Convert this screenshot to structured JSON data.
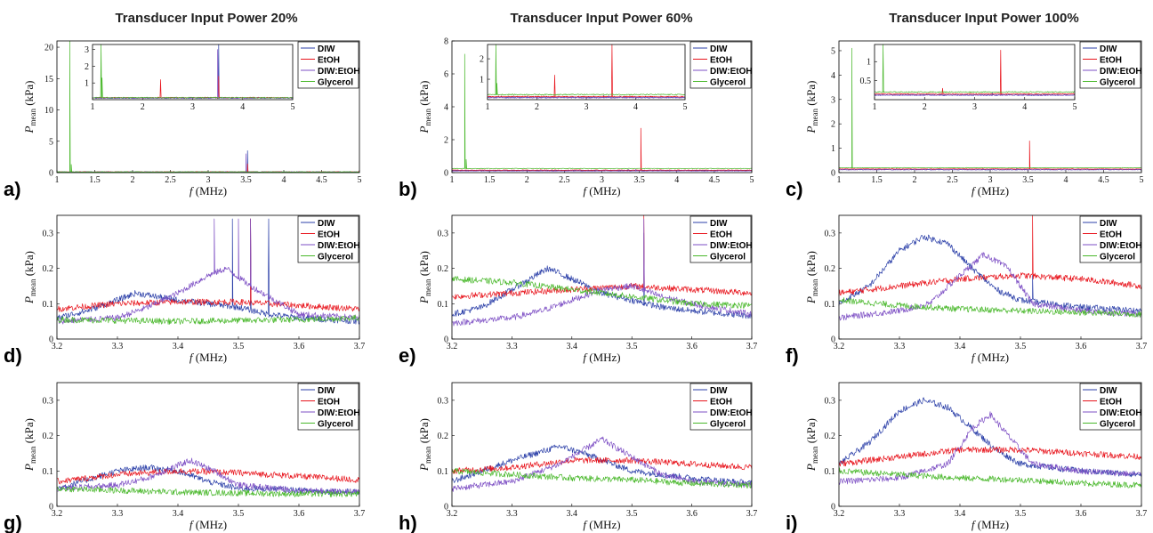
{
  "column_titles": [
    "Transducer Input Power 20%",
    "Transducer Input Power 60%",
    "Transducer Input Power 100%"
  ],
  "colors": {
    "DIW": "#2b3fa8",
    "EtOH": "#e8141c",
    "DIW:EtOH": "#7d4fc4",
    "Glycerol": "#49b82b"
  },
  "axis_text": {
    "x_var": "f",
    "x_unit": "(MHz)",
    "y_var": "P",
    "y_sub": "mean",
    "y_unit": "(kPa)"
  },
  "chart_data": [
    {
      "panel": "a)",
      "type": "line",
      "xlim": [
        1,
        5
      ],
      "ylim": [
        0,
        21
      ],
      "legend": "top-right",
      "x_ticks": [
        1,
        1.5,
        2,
        2.5,
        3,
        3.5,
        4,
        4.5,
        5
      ],
      "y_ticks": [
        0,
        5,
        10,
        15,
        20
      ],
      "series": [
        {
          "name": "DIW",
          "base": 0.1,
          "peaks": [
            [
              3.52,
              3.5
            ]
          ]
        },
        {
          "name": "EtOH",
          "base": 0.12,
          "peaks": [
            [
              2.36,
              1.2
            ],
            [
              3.52,
              1.4
            ]
          ]
        },
        {
          "name": "DIW:EtOH",
          "base": 0.1,
          "peaks": [
            [
              3.5,
              3.0
            ]
          ]
        },
        {
          "name": "Glycerol",
          "base": 0.12,
          "peaks": [
            [
              1.17,
              21
            ],
            [
              1.19,
              1.3
            ]
          ]
        }
      ],
      "inset": {
        "xlim": [
          1,
          5
        ],
        "ylim": [
          0,
          3.3
        ],
        "x_ticks": [
          1,
          2,
          3,
          4,
          5
        ],
        "y_ticks": [
          1,
          2,
          3
        ]
      }
    },
    {
      "panel": "b)",
      "type": "line",
      "xlim": [
        1,
        5
      ],
      "ylim": [
        0,
        8
      ],
      "legend": "top-right",
      "x_ticks": [
        1,
        1.5,
        2,
        2.5,
        3,
        3.5,
        4,
        4.5,
        5
      ],
      "y_ticks": [
        0,
        2,
        4,
        6,
        8
      ],
      "series": [
        {
          "name": "DIW",
          "base": 0.12,
          "peaks": [
            [
              3.35,
              0.2
            ]
          ]
        },
        {
          "name": "EtOH",
          "base": 0.15,
          "peaks": [
            [
              2.36,
              1.2
            ],
            [
              3.52,
              2.7
            ]
          ]
        },
        {
          "name": "DIW:EtOH",
          "base": 0.1,
          "peaks": [
            [
              3.45,
              0.2
            ]
          ]
        },
        {
          "name": "Glycerol",
          "base": 0.25,
          "peaks": [
            [
              1.17,
              7.2
            ],
            [
              1.19,
              0.8
            ]
          ]
        }
      ],
      "inset": {
        "xlim": [
          1,
          5
        ],
        "ylim": [
          0,
          2.7
        ],
        "x_ticks": [
          1,
          2,
          3,
          4,
          5
        ],
        "y_ticks": [
          1,
          2
        ]
      }
    },
    {
      "panel": "c)",
      "type": "line",
      "xlim": [
        1,
        5
      ],
      "ylim": [
        0,
        5.4
      ],
      "legend": "top-right",
      "x_ticks": [
        1,
        1.5,
        2,
        2.5,
        3,
        3.5,
        4,
        4.5,
        5
      ],
      "y_ticks": [
        0,
        1,
        2,
        3,
        4,
        5
      ],
      "series": [
        {
          "name": "DIW",
          "base": 0.12,
          "peaks": [
            [
              3.35,
              0.18
            ]
          ]
        },
        {
          "name": "EtOH",
          "base": 0.15,
          "peaks": [
            [
              2.36,
              0.3
            ],
            [
              3.52,
              1.3
            ]
          ]
        },
        {
          "name": "DIW:EtOH",
          "base": 0.12,
          "peaks": [
            [
              3.45,
              0.1
            ]
          ]
        },
        {
          "name": "Glycerol",
          "base": 0.2,
          "peaks": [
            [
              1.17,
              5.1
            ]
          ]
        }
      ],
      "inset": {
        "xlim": [
          1,
          5
        ],
        "ylim": [
          0,
          1.45
        ],
        "x_ticks": [
          1,
          2,
          3,
          4,
          5
        ],
        "y_ticks": [
          0.5,
          1
        ]
      }
    },
    {
      "panel": "d)",
      "type": "line",
      "xlim": [
        3.2,
        3.7
      ],
      "ylim": [
        0,
        0.35
      ],
      "legend": "top-right",
      "x_ticks": [
        3.2,
        3.3,
        3.4,
        3.5,
        3.6,
        3.7
      ],
      "y_ticks": [
        0,
        0.1,
        0.2,
        0.3
      ],
      "series": [
        {
          "name": "DIW",
          "x": [
            3.2,
            3.25,
            3.3,
            3.33,
            3.4,
            3.45,
            3.5,
            3.55,
            3.6,
            3.65,
            3.7
          ],
          "y": [
            0.06,
            0.08,
            0.11,
            0.13,
            0.11,
            0.1,
            0.09,
            0.07,
            0.06,
            0.055,
            0.05
          ],
          "peaks": [
            [
              3.49,
              0.34
            ],
            [
              3.52,
              0.34
            ],
            [
              3.55,
              0.34
            ]
          ]
        },
        {
          "name": "EtOH",
          "x": [
            3.2,
            3.3,
            3.4,
            3.5,
            3.6,
            3.7
          ],
          "y": [
            0.085,
            0.1,
            0.105,
            0.105,
            0.095,
            0.085
          ],
          "peaks": [
            [
              3.52,
              0.34
            ]
          ]
        },
        {
          "name": "DIW:EtOH",
          "x": [
            3.2,
            3.3,
            3.35,
            3.4,
            3.45,
            3.48,
            3.52,
            3.6,
            3.7
          ],
          "y": [
            0.05,
            0.06,
            0.09,
            0.13,
            0.18,
            0.2,
            0.15,
            0.07,
            0.06
          ],
          "peaks": [
            [
              3.46,
              0.34
            ],
            [
              3.5,
              0.34
            ],
            [
              3.52,
              0.34
            ]
          ]
        },
        {
          "name": "Glycerol",
          "x": [
            3.2,
            3.4,
            3.6,
            3.7
          ],
          "y": [
            0.055,
            0.05,
            0.055,
            0.06
          ]
        }
      ]
    },
    {
      "panel": "e)",
      "type": "line",
      "xlim": [
        3.2,
        3.7
      ],
      "ylim": [
        0,
        0.35
      ],
      "legend": "top-right",
      "x_ticks": [
        3.2,
        3.3,
        3.4,
        3.5,
        3.6,
        3.7
      ],
      "y_ticks": [
        0,
        0.1,
        0.2,
        0.3
      ],
      "series": [
        {
          "name": "DIW",
          "x": [
            3.2,
            3.25,
            3.3,
            3.36,
            3.4,
            3.45,
            3.5,
            3.55,
            3.6,
            3.7
          ],
          "y": [
            0.07,
            0.09,
            0.14,
            0.2,
            0.17,
            0.13,
            0.11,
            0.09,
            0.08,
            0.065
          ],
          "peaks": [
            [
              3.52,
              0.3
            ]
          ]
        },
        {
          "name": "EtOH",
          "x": [
            3.2,
            3.3,
            3.4,
            3.5,
            3.6,
            3.7
          ],
          "y": [
            0.12,
            0.13,
            0.14,
            0.15,
            0.14,
            0.13
          ],
          "peaks": [
            [
              3.52,
              0.35
            ]
          ]
        },
        {
          "name": "DIW:EtOH",
          "x": [
            3.2,
            3.3,
            3.35,
            3.4,
            3.45,
            3.5,
            3.55,
            3.6,
            3.7
          ],
          "y": [
            0.045,
            0.06,
            0.08,
            0.11,
            0.14,
            0.15,
            0.12,
            0.1,
            0.07
          ],
          "peaks": [
            [
              3.52,
              0.34
            ]
          ]
        },
        {
          "name": "Glycerol",
          "x": [
            3.2,
            3.3,
            3.4,
            3.5,
            3.6,
            3.7
          ],
          "y": [
            0.17,
            0.16,
            0.14,
            0.12,
            0.1,
            0.095
          ]
        }
      ]
    },
    {
      "panel": "f)",
      "type": "line",
      "xlim": [
        3.2,
        3.7
      ],
      "ylim": [
        0,
        0.35
      ],
      "legend": "top-right",
      "x_ticks": [
        3.2,
        3.3,
        3.4,
        3.5,
        3.6,
        3.7
      ],
      "y_ticks": [
        0,
        0.1,
        0.2,
        0.3
      ],
      "series": [
        {
          "name": "DIW",
          "x": [
            3.2,
            3.25,
            3.3,
            3.34,
            3.38,
            3.42,
            3.46,
            3.5,
            3.55,
            3.6,
            3.7
          ],
          "y": [
            0.1,
            0.15,
            0.25,
            0.29,
            0.27,
            0.2,
            0.14,
            0.11,
            0.1,
            0.09,
            0.08
          ],
          "peaks": [
            [
              3.52,
              0.18
            ]
          ]
        },
        {
          "name": "EtOH",
          "x": [
            3.2,
            3.3,
            3.4,
            3.5,
            3.6,
            3.7
          ],
          "y": [
            0.13,
            0.15,
            0.17,
            0.18,
            0.17,
            0.15
          ],
          "peaks": [
            [
              3.52,
              0.35
            ]
          ]
        },
        {
          "name": "DIW:EtOH",
          "x": [
            3.2,
            3.3,
            3.35,
            3.4,
            3.44,
            3.48,
            3.52,
            3.6,
            3.7
          ],
          "y": [
            0.06,
            0.08,
            0.1,
            0.18,
            0.24,
            0.2,
            0.1,
            0.08,
            0.07
          ]
        },
        {
          "name": "Glycerol",
          "x": [
            3.2,
            3.3,
            3.4,
            3.5,
            3.6,
            3.7
          ],
          "y": [
            0.11,
            0.095,
            0.085,
            0.08,
            0.075,
            0.07
          ]
        }
      ]
    },
    {
      "panel": "g)",
      "type": "line",
      "xlim": [
        3.2,
        3.7
      ],
      "ylim": [
        0,
        0.35
      ],
      "legend": "top-right",
      "x_ticks": [
        3.2,
        3.3,
        3.4,
        3.5,
        3.6,
        3.7
      ],
      "y_ticks": [
        0,
        0.1,
        0.2,
        0.3
      ],
      "series": [
        {
          "name": "DIW",
          "x": [
            3.2,
            3.3,
            3.35,
            3.4,
            3.45,
            3.5,
            3.55,
            3.6,
            3.7
          ],
          "y": [
            0.05,
            0.1,
            0.11,
            0.1,
            0.07,
            0.05,
            0.05,
            0.045,
            0.04
          ]
        },
        {
          "name": "EtOH",
          "x": [
            3.2,
            3.3,
            3.4,
            3.5,
            3.6,
            3.7
          ],
          "y": [
            0.07,
            0.09,
            0.1,
            0.095,
            0.085,
            0.075
          ]
        },
        {
          "name": "DIW:EtOH",
          "x": [
            3.2,
            3.3,
            3.35,
            3.42,
            3.46,
            3.5,
            3.6,
            3.7
          ],
          "y": [
            0.05,
            0.06,
            0.08,
            0.13,
            0.1,
            0.06,
            0.045,
            0.04
          ]
        },
        {
          "name": "Glycerol",
          "x": [
            3.2,
            3.4,
            3.6,
            3.7
          ],
          "y": [
            0.05,
            0.04,
            0.035,
            0.035
          ]
        }
      ]
    },
    {
      "panel": "h)",
      "type": "line",
      "xlim": [
        3.2,
        3.7
      ],
      "ylim": [
        0,
        0.35
      ],
      "legend": "top-right",
      "x_ticks": [
        3.2,
        3.3,
        3.4,
        3.5,
        3.6,
        3.7
      ],
      "y_ticks": [
        0,
        0.1,
        0.2,
        0.3
      ],
      "series": [
        {
          "name": "DIW",
          "x": [
            3.2,
            3.3,
            3.38,
            3.42,
            3.5,
            3.6,
            3.7
          ],
          "y": [
            0.07,
            0.13,
            0.17,
            0.15,
            0.1,
            0.08,
            0.065
          ]
        },
        {
          "name": "EtOH",
          "x": [
            3.2,
            3.3,
            3.4,
            3.5,
            3.6,
            3.7
          ],
          "y": [
            0.1,
            0.11,
            0.13,
            0.13,
            0.12,
            0.11
          ]
        },
        {
          "name": "DIW:EtOH",
          "x": [
            3.2,
            3.3,
            3.38,
            3.45,
            3.48,
            3.55,
            3.6,
            3.7
          ],
          "y": [
            0.05,
            0.07,
            0.12,
            0.19,
            0.16,
            0.09,
            0.07,
            0.06
          ]
        },
        {
          "name": "Glycerol",
          "x": [
            3.2,
            3.3,
            3.4,
            3.5,
            3.6,
            3.7
          ],
          "y": [
            0.1,
            0.09,
            0.08,
            0.075,
            0.065,
            0.06
          ]
        }
      ]
    },
    {
      "panel": "i)",
      "type": "line",
      "xlim": [
        3.2,
        3.7
      ],
      "ylim": [
        0,
        0.35
      ],
      "legend": "top-right",
      "x_ticks": [
        3.2,
        3.3,
        3.4,
        3.5,
        3.6,
        3.7
      ],
      "y_ticks": [
        0,
        0.1,
        0.2,
        0.3
      ],
      "series": [
        {
          "name": "DIW",
          "x": [
            3.2,
            3.25,
            3.3,
            3.34,
            3.38,
            3.42,
            3.46,
            3.5,
            3.6,
            3.7
          ],
          "y": [
            0.12,
            0.18,
            0.27,
            0.3,
            0.28,
            0.22,
            0.16,
            0.12,
            0.1,
            0.09
          ]
        },
        {
          "name": "EtOH",
          "x": [
            3.2,
            3.3,
            3.4,
            3.5,
            3.6,
            3.7
          ],
          "y": [
            0.12,
            0.14,
            0.16,
            0.16,
            0.15,
            0.14
          ]
        },
        {
          "name": "DIW:EtOH",
          "x": [
            3.2,
            3.3,
            3.38,
            3.42,
            3.45,
            3.48,
            3.52,
            3.6,
            3.7
          ],
          "y": [
            0.07,
            0.08,
            0.12,
            0.22,
            0.26,
            0.2,
            0.12,
            0.1,
            0.09
          ]
        },
        {
          "name": "Glycerol",
          "x": [
            3.2,
            3.3,
            3.4,
            3.5,
            3.6,
            3.7
          ],
          "y": [
            0.1,
            0.09,
            0.08,
            0.075,
            0.065,
            0.06
          ]
        }
      ]
    }
  ]
}
